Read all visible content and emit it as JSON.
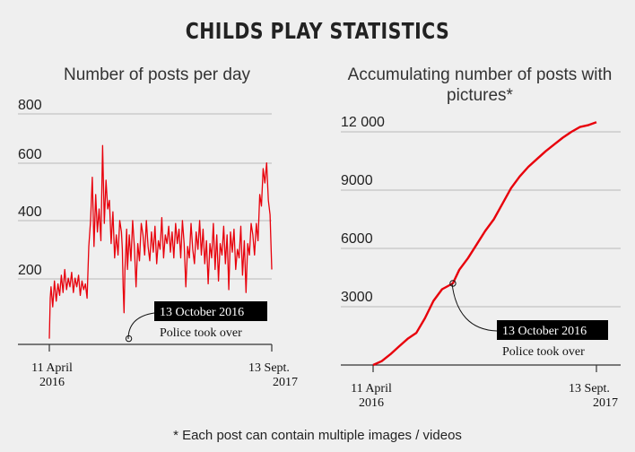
{
  "page_title": "CHILDS PLAY STATISTICS",
  "footnote": "* Each post can contain multiple images / videos",
  "accent_color": "#e8000b",
  "chart_data": [
    {
      "type": "line",
      "title": "Number of posts per day",
      "x_start": "11 April 2016",
      "x_end": "13 Sept. 2017",
      "x_tick_labels": [
        [
          "11 April",
          "2016"
        ],
        [
          "13 Sept.",
          "2017"
        ]
      ],
      "yticks": [
        "200",
        "400",
        "600",
        "800"
      ],
      "ylim": [
        0,
        800
      ],
      "grid": true,
      "series": [
        {
          "color": "#e8000b",
          "x_day": [
            0,
            2,
            4,
            8,
            12,
            16,
            20,
            24,
            28,
            32,
            36,
            40,
            44,
            48,
            52,
            56,
            60,
            64,
            68,
            72,
            76,
            80,
            84,
            88,
            92,
            96,
            100,
            104,
            108,
            112,
            116,
            120,
            124,
            128,
            132,
            136,
            140,
            144,
            148,
            152,
            156,
            160,
            164,
            168,
            170,
            172,
            174,
            176,
            178,
            180,
            182,
            186,
            190,
            194,
            198,
            202,
            206,
            210,
            214,
            218,
            222,
            226,
            230,
            234,
            238,
            242,
            246,
            250,
            254,
            258,
            262,
            266,
            270,
            274,
            278,
            282,
            286,
            290,
            294,
            298,
            302,
            306,
            310,
            314,
            318,
            322,
            326,
            330,
            334,
            338,
            342,
            346,
            350,
            354,
            358,
            362,
            366,
            370,
            374,
            378,
            382,
            386,
            390,
            394,
            398,
            402,
            406,
            410,
            414,
            418,
            422,
            426,
            430,
            434,
            438,
            442,
            446,
            450,
            454,
            458,
            462,
            466,
            470,
            474,
            478,
            482,
            486,
            490,
            494,
            498,
            502,
            506,
            510,
            514,
            518
          ],
          "values": [
            20,
            160,
            200,
            130,
            220,
            150,
            210,
            170,
            240,
            180,
            260,
            190,
            230,
            200,
            250,
            180,
            230,
            200,
            240,
            170,
            220,
            190,
            210,
            160,
            340,
            430,
            580,
            340,
            520,
            390,
            470,
            360,
            690,
            420,
            570,
            470,
            500,
            350,
            460,
            300,
            380,
            310,
            430,
            390,
            330,
            200,
            110,
            260,
            320,
            400,
            260,
            380,
            290,
            430,
            340,
            200,
            350,
            290,
            420,
            380,
            310,
            430,
            340,
            290,
            390,
            320,
            410,
            280,
            360,
            330,
            440,
            300,
            380,
            350,
            410,
            320,
            390,
            300,
            420,
            350,
            400,
            300,
            430,
            350,
            200,
            340,
            300,
            420,
            330,
            280,
            390,
            330,
            430,
            310,
            400,
            280,
            360,
            210,
            350,
            300,
            420,
            260,
            380,
            220,
            350,
            310,
            410,
            280,
            380,
            190,
            390,
            320,
            400,
            260,
            330,
            300,
            410,
            240,
            360,
            180,
            350,
            310,
            420,
            380,
            310,
            420,
            360,
            520,
            480,
            610,
            560,
            630,
            500,
            450,
            260
          ]
        }
      ],
      "annotation": {
        "date": "13 October 2016",
        "note": "Police took over",
        "day": 185,
        "value": 20
      }
    },
    {
      "type": "line",
      "title": "Accumulating number of posts with pictures*",
      "x_start": "11 April 2016",
      "x_end": "13 Sept. 2017",
      "x_tick_labels": [
        [
          "11 April",
          "2016"
        ],
        [
          "13 Sept.",
          "2017"
        ]
      ],
      "yticks": [
        "3000",
        "6000",
        "9000",
        "12 000"
      ],
      "ylim": [
        0,
        12000
      ],
      "grid": true,
      "series": [
        {
          "color": "#e8000b",
          "x_day": [
            0,
            20,
            40,
            60,
            80,
            100,
            120,
            140,
            160,
            185,
            200,
            220,
            240,
            260,
            280,
            300,
            320,
            340,
            360,
            380,
            400,
            420,
            440,
            460,
            480,
            500,
            518
          ],
          "values": [
            0,
            200,
            550,
            950,
            1350,
            1650,
            2400,
            3300,
            3900,
            4200,
            4900,
            5500,
            6200,
            6900,
            7500,
            8300,
            9100,
            9700,
            10200,
            10600,
            11000,
            11350,
            11700,
            12000,
            12250,
            12350,
            12500
          ]
        }
      ],
      "annotation": {
        "date": "13 October 2016",
        "note": "Police took over",
        "day": 185,
        "value": 4200
      }
    }
  ]
}
